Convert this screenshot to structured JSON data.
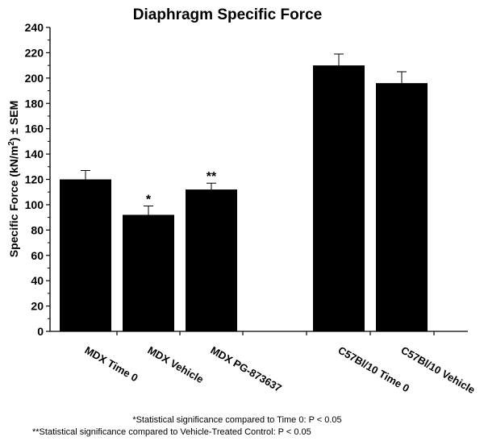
{
  "chart_data": {
    "type": "bar",
    "title": "Diaphragm Specific Force",
    "ylabel_main": "Specific Force (kN/m",
    "ylabel_sup": "2",
    "ylabel_tail": ") ± SEM",
    "xlabel": "",
    "ylim": [
      0,
      240
    ],
    "ytick_step": 20,
    "yticks": [
      "0",
      "20",
      "40",
      "60",
      "80",
      "100",
      "120",
      "140",
      "160",
      "180",
      "200",
      "220",
      "240"
    ],
    "categories": [
      "MDX Time 0",
      "MDX Vehicle",
      "MDX PG-873637",
      "C57Bl/10 Time 0",
      "C57Bl/10 Vehicle"
    ],
    "values": [
      120,
      92,
      112,
      210,
      196
    ],
    "errors": [
      7,
      7,
      5,
      9,
      9
    ],
    "annotations": [
      "",
      "*",
      "**",
      "",
      ""
    ],
    "bar_color": "#000000",
    "grid": false,
    "legend": "none"
  },
  "footnotes": [
    "*Statistical significance compared to Time 0: P < 0.05",
    "**Statistical significance compared to Vehicle-Treated Control: P < 0.05"
  ]
}
